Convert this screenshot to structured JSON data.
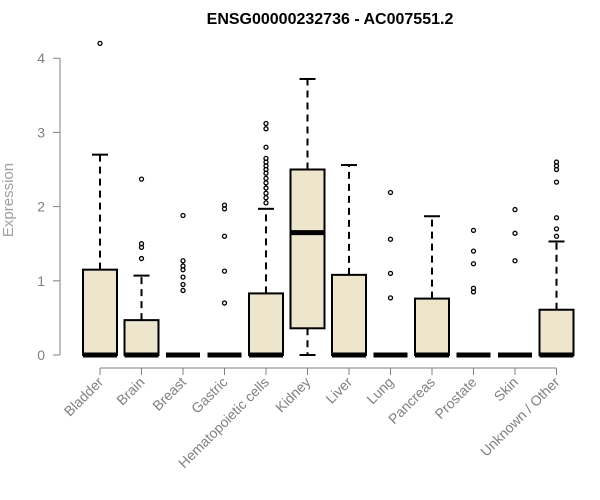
{
  "chart_data": {
    "type": "box",
    "title": "ENSG00000232736 - AC007551.2",
    "ylabel": "Expression",
    "xlabel": "",
    "ylim": [
      0,
      4.2
    ],
    "yticks": [
      0,
      1,
      2,
      3,
      4
    ],
    "grid": false,
    "colors": {
      "box_fill": "#ede6cd",
      "box_stroke": "#000000",
      "axis": "#808080"
    },
    "categories": [
      "Bladder",
      "Brain",
      "Breast",
      "Gastric",
      "Hematopoietic cells",
      "Kidney",
      "Liver",
      "Lung",
      "Pancreas",
      "Prostate",
      "Skin",
      "Unknown / Other"
    ],
    "boxes": [
      {
        "label": "Bladder",
        "q1": 0,
        "median": 0,
        "q3": 1.15,
        "whisker_low": 0,
        "whisker_high": 2.7,
        "outliers": [
          4.2
        ]
      },
      {
        "label": "Brain",
        "q1": 0,
        "median": 0,
        "q3": 0.47,
        "whisker_low": 0,
        "whisker_high": 1.07,
        "outliers": [
          1.3,
          1.45,
          1.5,
          2.37
        ]
      },
      {
        "label": "Breast",
        "q1": 0,
        "median": 0,
        "q3": 0,
        "whisker_low": 0,
        "whisker_high": 0,
        "outliers": [
          0.87,
          0.95,
          1.05,
          1.15,
          1.2,
          1.27,
          1.88
        ]
      },
      {
        "label": "Gastric",
        "q1": 0,
        "median": 0,
        "q3": 0,
        "whisker_low": 0,
        "whisker_high": 0,
        "outliers": [
          0.7,
          1.13,
          1.6,
          1.97,
          2.02
        ]
      },
      {
        "label": "Hematopoietic cells",
        "q1": 0,
        "median": 0,
        "q3": 0.83,
        "whisker_low": 0,
        "whisker_high": 1.97,
        "outliers": [
          2.05,
          2.12,
          2.18,
          2.25,
          2.32,
          2.38,
          2.45,
          2.5,
          2.55,
          2.6,
          2.65,
          2.8,
          3.05,
          3.12
        ]
      },
      {
        "label": "Kidney",
        "q1": 0.36,
        "median": 1.65,
        "q3": 2.5,
        "whisker_low": 0,
        "whisker_high": 3.72,
        "outliers": []
      },
      {
        "label": "Liver",
        "q1": 0,
        "median": 0,
        "q3": 1.08,
        "whisker_low": 0,
        "whisker_high": 2.56,
        "outliers": []
      },
      {
        "label": "Lung",
        "q1": 0,
        "median": 0,
        "q3": 0,
        "whisker_low": 0,
        "whisker_high": 0,
        "outliers": [
          0.77,
          1.1,
          1.56,
          2.19
        ]
      },
      {
        "label": "Pancreas",
        "q1": 0,
        "median": 0,
        "q3": 0.76,
        "whisker_low": 0,
        "whisker_high": 1.87,
        "outliers": []
      },
      {
        "label": "Prostate",
        "q1": 0,
        "median": 0,
        "q3": 0,
        "whisker_low": 0,
        "whisker_high": 0,
        "outliers": [
          0.85,
          0.9,
          1.23,
          1.4,
          1.68
        ]
      },
      {
        "label": "Skin",
        "q1": 0,
        "median": 0,
        "q3": 0,
        "whisker_low": 0,
        "whisker_high": 0,
        "outliers": [
          1.27,
          1.64,
          1.96
        ]
      },
      {
        "label": "Unknown / Other",
        "q1": 0,
        "median": 0,
        "q3": 0.61,
        "whisker_low": 0,
        "whisker_high": 1.53,
        "outliers": [
          1.6,
          1.7,
          1.85,
          2.33,
          2.5,
          2.55,
          2.6
        ]
      }
    ]
  }
}
